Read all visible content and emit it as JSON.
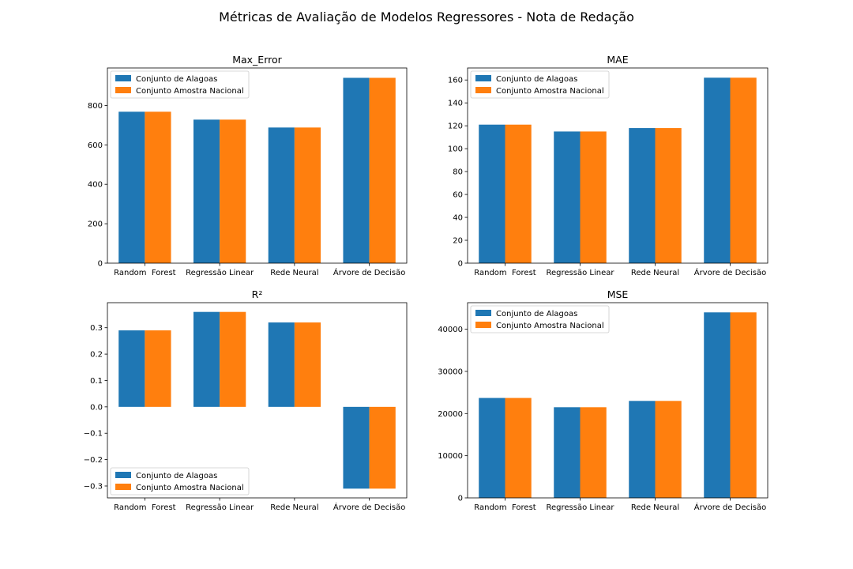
{
  "figure": {
    "title": "Métricas de Avaliação de Modelos Regressores - Nota de Redação"
  },
  "colors": {
    "series_1": "#1f77b4",
    "series_2": "#ff7f0e"
  },
  "chart_data": [
    {
      "type": "bar",
      "title": "Max_Error",
      "categories": [
        "Random  Forest",
        "Regressão Linear",
        "Rede Neural",
        "Árvore de Decisão"
      ],
      "series": [
        {
          "name": "Conjunto de Alagoas",
          "values": [
            768,
            728,
            688,
            940
          ]
        },
        {
          "name": "Conjunto Amostra Nacional",
          "values": [
            768,
            728,
            688,
            940
          ]
        }
      ],
      "ylim": [
        0,
        990
      ],
      "yticks": [
        0,
        200,
        400,
        600,
        800
      ],
      "ytick_labels": [
        "0",
        "200",
        "400",
        "600",
        "800"
      ],
      "legend": "upper-left",
      "grid": false
    },
    {
      "type": "bar",
      "title": "MAE",
      "categories": [
        "Random  Forest",
        "Regressão Linear",
        "Rede Neural",
        "Árvore de Decisão"
      ],
      "series": [
        {
          "name": "Conjunto de Alagoas",
          "values": [
            121,
            115,
            118,
            162
          ]
        },
        {
          "name": "Conjunto Amostra Nacional",
          "values": [
            121,
            115,
            118,
            162
          ]
        }
      ],
      "ylim": [
        0,
        170.5
      ],
      "yticks": [
        0,
        20,
        40,
        60,
        80,
        100,
        120,
        140,
        160
      ],
      "ytick_labels": [
        "0",
        "20",
        "40",
        "60",
        "80",
        "100",
        "120",
        "140",
        "160"
      ],
      "legend": "upper-left",
      "grid": false
    },
    {
      "type": "bar",
      "title": "R²",
      "categories": [
        "Random  Forest",
        "Regressão Linear",
        "Rede Neural",
        "Árvore de Decisão"
      ],
      "series": [
        {
          "name": "Conjunto de Alagoas",
          "values": [
            0.29,
            0.36,
            0.32,
            -0.31
          ]
        },
        {
          "name": "Conjunto Amostra Nacional",
          "values": [
            0.29,
            0.36,
            0.32,
            -0.31
          ]
        }
      ],
      "ylim": [
        -0.345,
        0.395
      ],
      "yticks": [
        -0.3,
        -0.2,
        -0.1,
        0.0,
        0.1,
        0.2,
        0.3
      ],
      "ytick_labels": [
        "−0.3",
        "−0.2",
        "−0.1",
        "0.0",
        "0.1",
        "0.2",
        "0.3"
      ],
      "legend": "lower-left",
      "grid": false
    },
    {
      "type": "bar",
      "title": "MSE",
      "categories": [
        "Random  Forest",
        "Regressão Linear",
        "Rede Neural",
        "Árvore de Decisão"
      ],
      "series": [
        {
          "name": "Conjunto de Alagoas",
          "values": [
            23700,
            21500,
            23000,
            44000
          ]
        },
        {
          "name": "Conjunto Amostra Nacional",
          "values": [
            23700,
            21500,
            23000,
            44000
          ]
        }
      ],
      "ylim": [
        0,
        46300
      ],
      "yticks": [
        0,
        10000,
        20000,
        30000,
        40000
      ],
      "ytick_labels": [
        "0",
        "10000",
        "20000",
        "30000",
        "40000"
      ],
      "legend": "upper-left",
      "grid": false
    }
  ]
}
